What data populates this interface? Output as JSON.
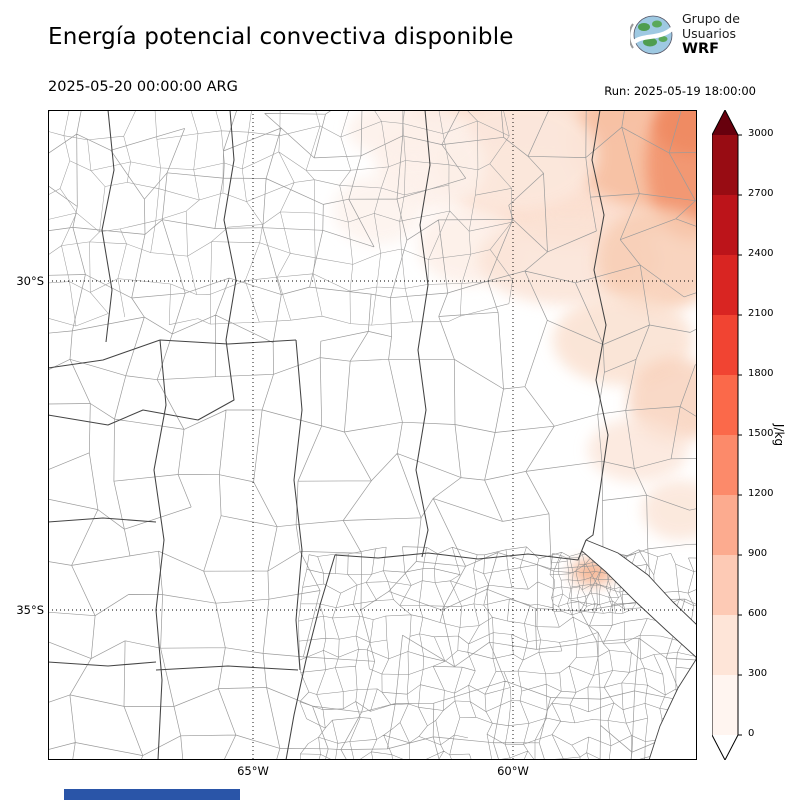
{
  "header": {
    "title": "Energía potencial convectiva disponible",
    "logo": {
      "line1": "Grupo de",
      "line2": "Usuarios",
      "line3": "WRF"
    }
  },
  "subheader": {
    "valid_time": "2025-05-20 00:00:00 ARG",
    "run_time": "Run: 2025-05-19 18:00:00"
  },
  "map": {
    "lat_labels": [
      "30°S",
      "35°S"
    ],
    "lon_labels": [
      "65°W",
      "60°W"
    ]
  },
  "colorbar": {
    "unit": "J/kg",
    "ticks": [
      "3000",
      "2700",
      "2400",
      "2100",
      "1800",
      "1500",
      "1200",
      "900",
      "600",
      "300",
      "0"
    ],
    "colors_bottom_to_top": [
      "#fff5f0",
      "#fee5d8",
      "#fdcab5",
      "#fcab8f",
      "#fc8a6a",
      "#fb694a",
      "#f14432",
      "#d92522",
      "#bc141a",
      "#980c13"
    ],
    "over_color": "#67000d",
    "under_color": "#ffffff"
  },
  "chart_data": {
    "type": "heatmap",
    "title": "Energía potencial convectiva disponible",
    "valid": "2025-05-20 00:00:00 ARG",
    "run": "Run: 2025-05-19 18:00:00",
    "units": "J/kg",
    "colorbar_ticks": [
      0,
      300,
      600,
      900,
      1200,
      1500,
      1800,
      2100,
      2400,
      2700,
      3000
    ],
    "colorbar_range": [
      0,
      3000
    ],
    "lat_gridlines": [
      "30°S",
      "35°S"
    ],
    "lon_gridlines": [
      "65°W",
      "60°W"
    ],
    "field_summary": "CAPE near 0 over most of the domain; pale shading roughly 100-900 J/kg over the northeastern sector with the maximum in the top-right corner of the map"
  },
  "footer": {
    "bar_color": "#2a55a8"
  }
}
